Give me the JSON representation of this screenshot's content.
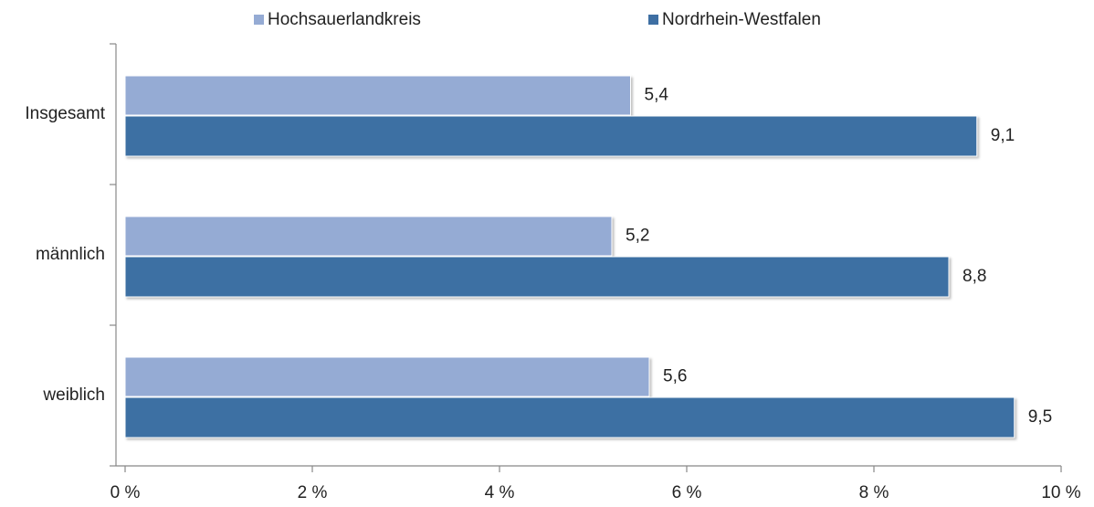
{
  "chart_data": {
    "type": "barh",
    "categories": [
      "Insgesamt",
      "männlich",
      "weiblich"
    ],
    "series": [
      {
        "name": "Hochsauerlandkreis",
        "color": "#95abd4",
        "values": [
          5.4,
          5.2,
          5.6
        ],
        "value_labels": [
          "5,4",
          "5,2",
          "5,6"
        ]
      },
      {
        "name": "Nordrhein-Westfalen",
        "color": "#3e6fa3",
        "values": [
          9.1,
          8.8,
          9.5
        ],
        "value_labels": [
          "9,1",
          "8,8",
          "9,5"
        ]
      }
    ],
    "xlim": [
      0,
      10
    ],
    "xticks": [
      {
        "value": 0,
        "label": "0 %"
      },
      {
        "value": 2,
        "label": "2 %"
      },
      {
        "value": 4,
        "label": "4 %"
      },
      {
        "value": 6,
        "label": "6 %"
      },
      {
        "value": 8,
        "label": "8 %"
      },
      {
        "value": 10,
        "label": "10 %"
      }
    ],
    "legend": "top"
  }
}
